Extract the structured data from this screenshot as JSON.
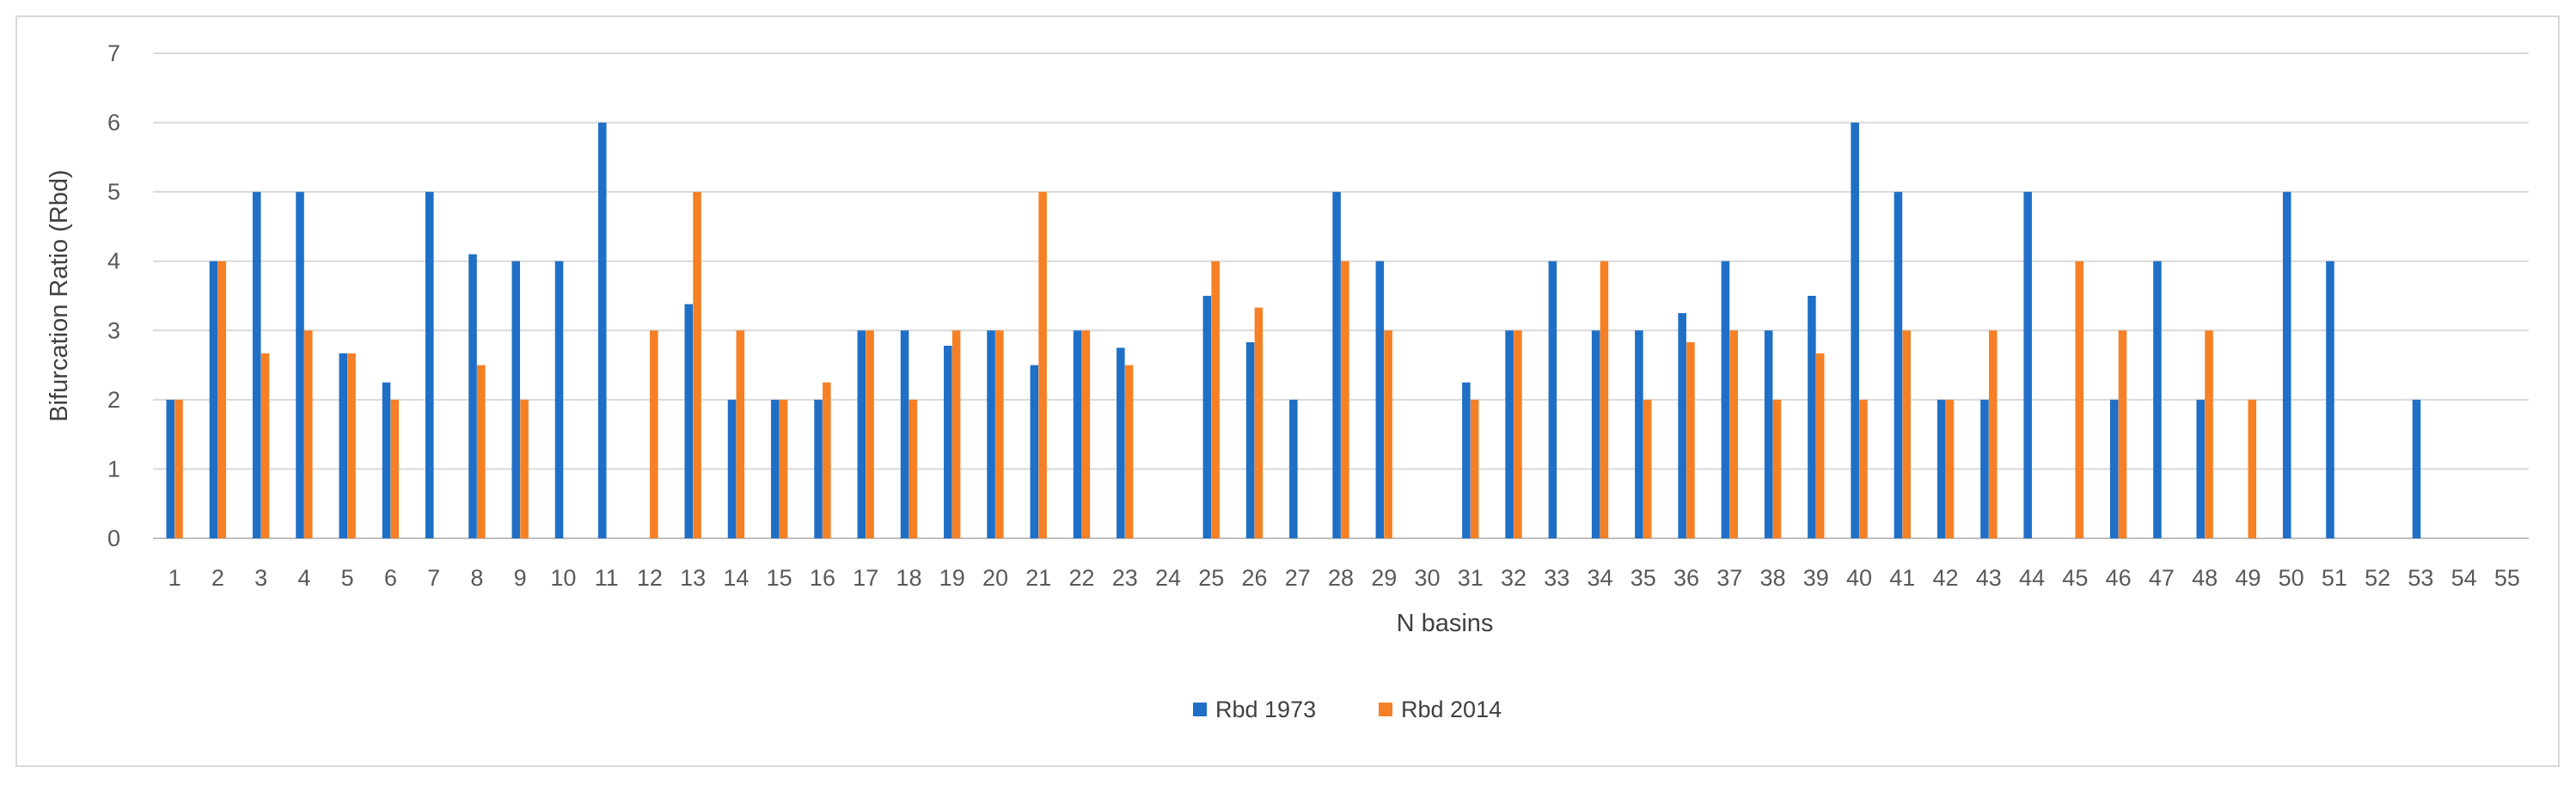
{
  "chart_data": {
    "type": "bar",
    "title": "",
    "xlabel": "N basins",
    "ylabel": "Bifurcation Ratio (Rbd)",
    "ylim": [
      0,
      7
    ],
    "yticks": [
      "0",
      "1",
      "2",
      "3",
      "4",
      "5",
      "6",
      "7"
    ],
    "grid": true,
    "legend_position": "bottom-center",
    "categories": [
      "1",
      "2",
      "3",
      "4",
      "5",
      "6",
      "7",
      "8",
      "9",
      "10",
      "11",
      "12",
      "13",
      "14",
      "15",
      "16",
      "17",
      "18",
      "19",
      "20",
      "21",
      "22",
      "23",
      "24",
      "25",
      "26",
      "27",
      "28",
      "29",
      "30",
      "31",
      "32",
      "33",
      "34",
      "35",
      "36",
      "37",
      "38",
      "39",
      "40",
      "41",
      "42",
      "43",
      "44",
      "45",
      "46",
      "47",
      "48",
      "49",
      "50",
      "51",
      "52",
      "53",
      "54",
      "55"
    ],
    "series": [
      {
        "name": "Rbd 1973",
        "color": "#1f6fc6",
        "values": [
          2,
          4,
          5,
          5,
          2.67,
          2.25,
          5,
          4.1,
          4,
          4,
          6,
          null,
          3.38,
          2,
          2,
          2,
          3,
          3,
          2.78,
          3,
          2.5,
          3,
          2.75,
          null,
          3.5,
          2.83,
          2,
          5,
          4,
          null,
          2.25,
          3,
          4,
          3,
          3,
          3.25,
          4,
          3,
          3.5,
          6,
          5,
          2,
          2,
          5,
          null,
          2,
          4,
          2,
          null,
          5,
          4,
          null,
          2,
          null,
          null
        ]
      },
      {
        "name": "Rbd 2014",
        "color": "#f58025",
        "values": [
          2,
          4,
          2.67,
          3,
          2.67,
          2,
          null,
          2.5,
          2,
          null,
          null,
          3,
          5,
          3,
          2,
          2.25,
          3,
          2,
          3,
          3,
          5,
          3,
          2.5,
          null,
          4,
          3.33,
          null,
          4,
          3,
          null,
          2,
          3,
          null,
          4,
          2,
          2.83,
          3,
          2,
          2.67,
          2,
          3,
          2,
          3,
          null,
          4,
          3,
          null,
          3,
          2,
          null,
          null,
          null,
          null,
          null,
          null
        ]
      }
    ]
  }
}
